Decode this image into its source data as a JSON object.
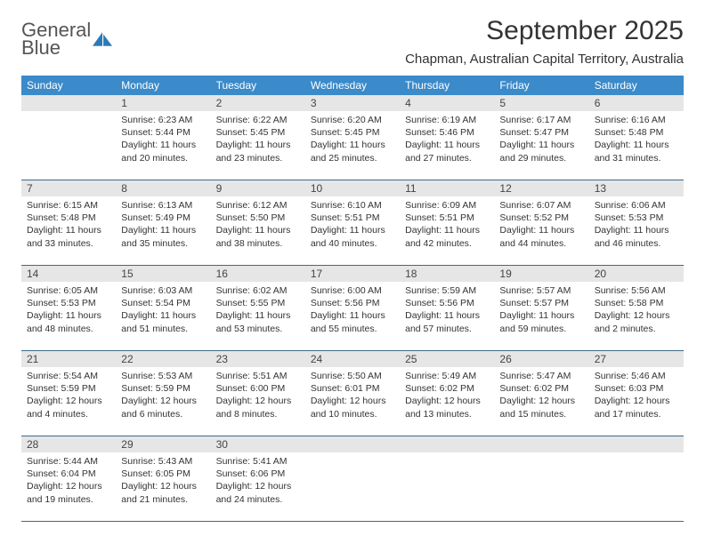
{
  "logo": {
    "line1": "General",
    "line2": "Blue"
  },
  "month_title": "September 2025",
  "location": "Chapman, Australian Capital Territory, Australia",
  "day_headers": [
    "Sunday",
    "Monday",
    "Tuesday",
    "Wednesday",
    "Thursday",
    "Friday",
    "Saturday"
  ],
  "colors": {
    "header_bg": "#3b8aca",
    "header_text": "#ffffff",
    "daynum_bg": "#e6e6e6",
    "border": "#3b6a8a",
    "text": "#333333",
    "logo_gray": "#555555",
    "logo_blue": "#2a7ab8"
  },
  "fonts": {
    "month_title_pt": 30,
    "location_pt": 15,
    "dayhead_pt": 12,
    "daynum_pt": 12,
    "cell_pt": 10.5
  },
  "weeks": [
    {
      "nums": [
        "",
        "1",
        "2",
        "3",
        "4",
        "5",
        "6"
      ],
      "cells": [
        "",
        "Sunrise: 6:23 AM\nSunset: 5:44 PM\nDaylight: 11 hours and 20 minutes.",
        "Sunrise: 6:22 AM\nSunset: 5:45 PM\nDaylight: 11 hours and 23 minutes.",
        "Sunrise: 6:20 AM\nSunset: 5:45 PM\nDaylight: 11 hours and 25 minutes.",
        "Sunrise: 6:19 AM\nSunset: 5:46 PM\nDaylight: 11 hours and 27 minutes.",
        "Sunrise: 6:17 AM\nSunset: 5:47 PM\nDaylight: 11 hours and 29 minutes.",
        "Sunrise: 6:16 AM\nSunset: 5:48 PM\nDaylight: 11 hours and 31 minutes."
      ]
    },
    {
      "nums": [
        "7",
        "8",
        "9",
        "10",
        "11",
        "12",
        "13"
      ],
      "cells": [
        "Sunrise: 6:15 AM\nSunset: 5:48 PM\nDaylight: 11 hours and 33 minutes.",
        "Sunrise: 6:13 AM\nSunset: 5:49 PM\nDaylight: 11 hours and 35 minutes.",
        "Sunrise: 6:12 AM\nSunset: 5:50 PM\nDaylight: 11 hours and 38 minutes.",
        "Sunrise: 6:10 AM\nSunset: 5:51 PM\nDaylight: 11 hours and 40 minutes.",
        "Sunrise: 6:09 AM\nSunset: 5:51 PM\nDaylight: 11 hours and 42 minutes.",
        "Sunrise: 6:07 AM\nSunset: 5:52 PM\nDaylight: 11 hours and 44 minutes.",
        "Sunrise: 6:06 AM\nSunset: 5:53 PM\nDaylight: 11 hours and 46 minutes."
      ]
    },
    {
      "nums": [
        "14",
        "15",
        "16",
        "17",
        "18",
        "19",
        "20"
      ],
      "cells": [
        "Sunrise: 6:05 AM\nSunset: 5:53 PM\nDaylight: 11 hours and 48 minutes.",
        "Sunrise: 6:03 AM\nSunset: 5:54 PM\nDaylight: 11 hours and 51 minutes.",
        "Sunrise: 6:02 AM\nSunset: 5:55 PM\nDaylight: 11 hours and 53 minutes.",
        "Sunrise: 6:00 AM\nSunset: 5:56 PM\nDaylight: 11 hours and 55 minutes.",
        "Sunrise: 5:59 AM\nSunset: 5:56 PM\nDaylight: 11 hours and 57 minutes.",
        "Sunrise: 5:57 AM\nSunset: 5:57 PM\nDaylight: 11 hours and 59 minutes.",
        "Sunrise: 5:56 AM\nSunset: 5:58 PM\nDaylight: 12 hours and 2 minutes."
      ]
    },
    {
      "nums": [
        "21",
        "22",
        "23",
        "24",
        "25",
        "26",
        "27"
      ],
      "cells": [
        "Sunrise: 5:54 AM\nSunset: 5:59 PM\nDaylight: 12 hours and 4 minutes.",
        "Sunrise: 5:53 AM\nSunset: 5:59 PM\nDaylight: 12 hours and 6 minutes.",
        "Sunrise: 5:51 AM\nSunset: 6:00 PM\nDaylight: 12 hours and 8 minutes.",
        "Sunrise: 5:50 AM\nSunset: 6:01 PM\nDaylight: 12 hours and 10 minutes.",
        "Sunrise: 5:49 AM\nSunset: 6:02 PM\nDaylight: 12 hours and 13 minutes.",
        "Sunrise: 5:47 AM\nSunset: 6:02 PM\nDaylight: 12 hours and 15 minutes.",
        "Sunrise: 5:46 AM\nSunset: 6:03 PM\nDaylight: 12 hours and 17 minutes."
      ]
    },
    {
      "nums": [
        "28",
        "29",
        "30",
        "",
        "",
        "",
        ""
      ],
      "cells": [
        "Sunrise: 5:44 AM\nSunset: 6:04 PM\nDaylight: 12 hours and 19 minutes.",
        "Sunrise: 5:43 AM\nSunset: 6:05 PM\nDaylight: 12 hours and 21 minutes.",
        "Sunrise: 5:41 AM\nSunset: 6:06 PM\nDaylight: 12 hours and 24 minutes.",
        "",
        "",
        "",
        ""
      ]
    }
  ]
}
